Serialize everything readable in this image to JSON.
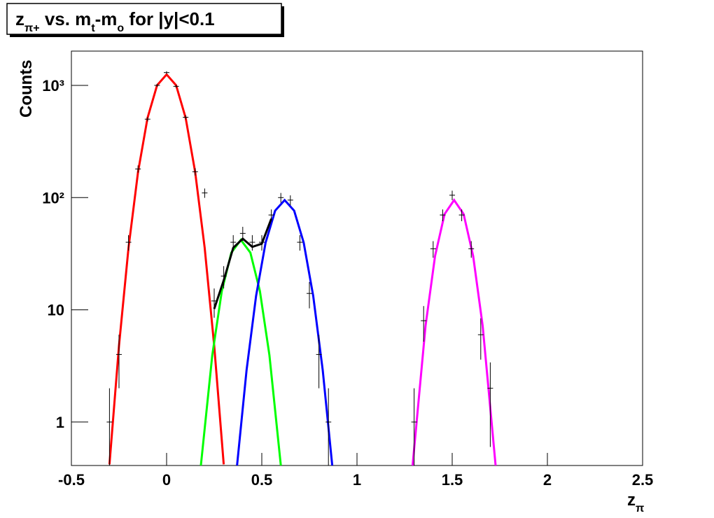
{
  "chart_data": {
    "type": "line",
    "title": [
      "z",
      "π+",
      " vs. m",
      "t",
      "-m",
      "o",
      " for |y|<0.1"
    ],
    "y_label": "Counts",
    "x_label": [
      "z",
      "π"
    ],
    "log_y": true,
    "xlim": [
      -0.5,
      2.5
    ],
    "ylim": [
      0.41,
      2020
    ],
    "xticks": [
      -0.5,
      0,
      0.5,
      1,
      1.5,
      2,
      2.5
    ],
    "yticks": [
      1,
      10,
      {
        "value": 100,
        "label": "10²"
      },
      {
        "value": 1000,
        "label": "10³"
      }
    ],
    "series": [
      {
        "color": "#ff0000",
        "x": [
          -0.3,
          -0.25,
          -0.2,
          -0.15,
          -0.1,
          -0.05,
          0,
          0.05,
          0.1,
          0.15,
          0.2,
          0.25,
          0.3
        ],
        "values": [
          0.42,
          4.8,
          35.7,
          169,
          514,
          1001,
          1250,
          1001,
          514,
          169,
          35.7,
          4.8,
          0.42
        ]
      },
      {
        "color": "#00ff00",
        "x": [
          0.18,
          0.24,
          0.29,
          0.34,
          0.39,
          0.44,
          0.49,
          0.54,
          0.6
        ],
        "values": [
          0.41,
          3.95,
          14.7,
          32.3,
          42,
          32.3,
          14.7,
          3.95,
          0.41
        ]
      },
      {
        "color": "#0000ff",
        "x": [
          0.37,
          0.42,
          0.47,
          0.52,
          0.57,
          0.62,
          0.67,
          0.72,
          0.77,
          0.82,
          0.87
        ],
        "values": [
          0.41,
          2.9,
          13.3,
          39.7,
          76.4,
          95,
          76.4,
          39.7,
          13.3,
          2.9,
          0.41
        ]
      },
      {
        "color": "#ff00ff",
        "x": [
          1.292,
          1.36,
          1.41,
          1.46,
          1.51,
          1.56,
          1.61,
          1.66,
          1.728
        ],
        "values": [
          0.41,
          7.2,
          30.2,
          71.3,
          95,
          71.3,
          30.2,
          7.2,
          0.41
        ]
      },
      {
        "color": "#000000",
        "x": [
          0.25,
          0.3,
          0.35,
          0.4,
          0.45,
          0.5,
          0.55
        ],
        "values": [
          10.2,
          18.3,
          35.7,
          43,
          36.4,
          38.8,
          64.8
        ]
      }
    ],
    "points": {
      "color": "#000000",
      "x": [
        -0.3,
        -0.25,
        -0.2,
        -0.15,
        -0.1,
        -0.05,
        0,
        0.05,
        0.1,
        0.15,
        0.2,
        0.25,
        0.3,
        0.35,
        0.4,
        0.45,
        0.5,
        0.55,
        0.6,
        0.65,
        0.7,
        0.75,
        0.8,
        0.85,
        1.3,
        1.35,
        1.4,
        1.45,
        1.5,
        1.55,
        1.6,
        1.65,
        1.7
      ],
      "values": [
        1,
        4,
        40,
        180,
        500,
        1000,
        1300,
        980,
        520,
        170,
        110,
        12,
        20,
        40,
        48,
        40,
        40,
        70,
        100,
        95,
        40,
        14,
        4,
        1,
        1,
        8,
        35,
        70,
        105,
        70,
        35,
        6,
        2
      ],
      "errors": [
        1,
        2,
        6.3,
        13.4,
        22.4,
        31.6,
        36.1,
        31.3,
        22.8,
        13,
        10.5,
        3.5,
        4.5,
        6.3,
        6.9,
        6.3,
        6.3,
        8.4,
        10,
        9.7,
        6.3,
        3.7,
        2,
        1,
        1,
        2.8,
        5.9,
        8.4,
        10.2,
        8.4,
        5.9,
        2.4,
        1.4
      ]
    }
  }
}
